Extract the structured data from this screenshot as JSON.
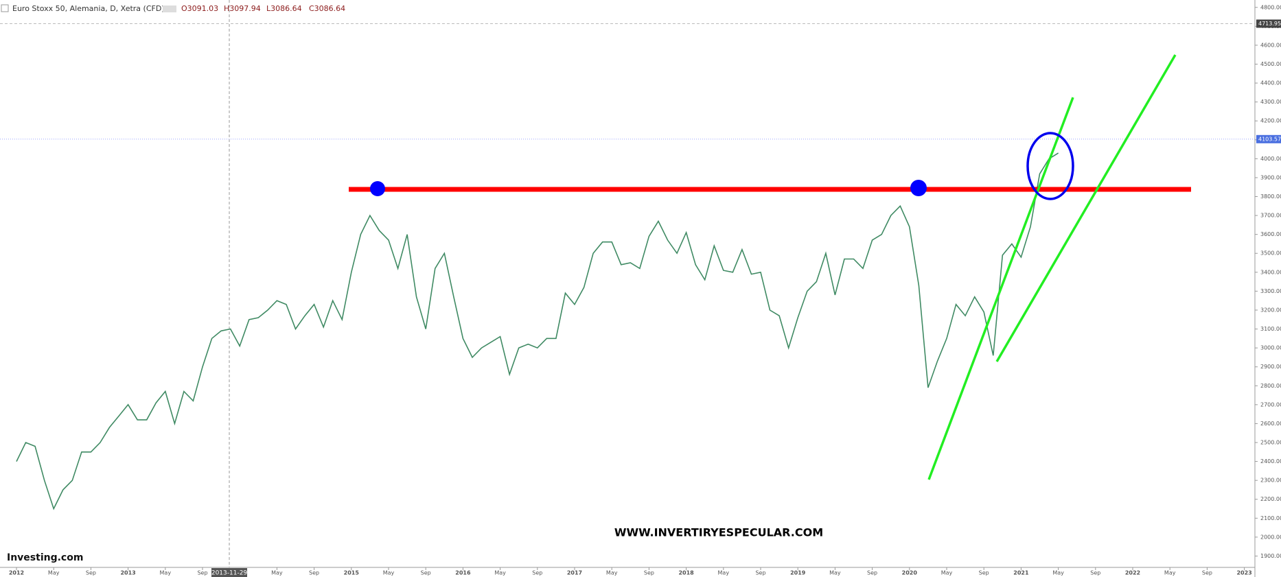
{
  "header": {
    "title": "Euro Stoxx 50, Alemania, D, Xetra (CFD) -",
    "open": "O3091.03",
    "high": "H3097.94",
    "low": "L3086.64",
    "close": "C3086.64"
  },
  "watermark": "WWW.INVERTIRYESPECULAR.COM",
  "logo": "Investing.com",
  "crosshair_date": "2013-11-29",
  "chart_data": {
    "type": "line",
    "categories": [
      "2012",
      null,
      null,
      null,
      "May",
      null,
      null,
      null,
      "Sep",
      null,
      null,
      null,
      "2013",
      null,
      null,
      null,
      "May",
      null,
      null,
      null,
      "Sep",
      null,
      null,
      null,
      null,
      null,
      null,
      null,
      "May",
      null,
      null,
      null,
      "Sep",
      null,
      null,
      null,
      "2015",
      null,
      null,
      null,
      "May",
      null,
      null,
      null,
      "Sep",
      null,
      null,
      null,
      "2016",
      null,
      null,
      null,
      "May",
      null,
      null,
      null,
      "Sep",
      null,
      null,
      null,
      "2017",
      null,
      null,
      null,
      "May",
      null,
      null,
      null,
      "Sep",
      null,
      null,
      null,
      "2018",
      null,
      null,
      null,
      "May",
      null,
      null,
      null,
      "Sep",
      null,
      null,
      null,
      "2019",
      null,
      null,
      null,
      "May",
      null,
      null,
      null,
      "Sep",
      null,
      null,
      null,
      "2020",
      null,
      null,
      null,
      "May",
      null,
      null,
      null,
      "Sep",
      null,
      null,
      null,
      "2021",
      null,
      null,
      null,
      "May",
      null,
      null,
      null,
      "Sep",
      null,
      null,
      null,
      "2022",
      null,
      null,
      null,
      "May",
      null,
      null,
      null,
      "Sep",
      null,
      null,
      null,
      "2023"
    ],
    "series": [
      {
        "name": "Euro Stoxx 50",
        "color": "#3f8a63",
        "values": [
          2400,
          2500,
          2480,
          2300,
          2150,
          2250,
          2300,
          2450,
          2450,
          2500,
          2580,
          2640,
          2700,
          2620,
          2620,
          2710,
          2770,
          2600,
          2770,
          2720,
          2900,
          3050,
          3090,
          3100,
          3010,
          3150,
          3160,
          3200,
          3250,
          3230,
          3100,
          3170,
          3230,
          3110,
          3250,
          3150,
          3400,
          3600,
          3700,
          3620,
          3570,
          3420,
          3600,
          3270,
          3100,
          3420,
          3500,
          3270,
          3050,
          2950,
          3000,
          3030,
          3060,
          2860,
          3000,
          3020,
          3000,
          3050,
          3050,
          3290,
          3230,
          3320,
          3500,
          3560,
          3560,
          3440,
          3450,
          3420,
          3590,
          3670,
          3570,
          3500,
          3610,
          3440,
          3360,
          3540,
          3410,
          3400,
          3520,
          3390,
          3400,
          3200,
          3170,
          3000,
          3160,
          3300,
          3350,
          3500,
          3280,
          3470,
          3470,
          3420,
          3570,
          3600,
          3700,
          3750,
          3640,
          3330,
          2790,
          2930,
          3050,
          3230,
          3170,
          3270,
          3190,
          2960,
          3490,
          3550,
          3480,
          3640,
          3920,
          4000,
          4030,
          null,
          null,
          null,
          null,
          null,
          null,
          null,
          null,
          null,
          null,
          null,
          null,
          null,
          null,
          null,
          null,
          null,
          null,
          null,
          null
        ]
      }
    ],
    "ylim": [
      1840,
      4839
    ],
    "yticks": [
      {
        "value": 1900,
        "label": "1900.00"
      },
      {
        "value": 2000,
        "label": "2000.00"
      },
      {
        "value": 2100,
        "label": "2100.00"
      },
      {
        "value": 2200,
        "label": "2200.00"
      },
      {
        "value": 2300,
        "label": "2300.00"
      },
      {
        "value": 2400,
        "label": "2400.00"
      },
      {
        "value": 2500,
        "label": "2500.00"
      },
      {
        "value": 2600,
        "label": "2600.00"
      },
      {
        "value": 2700,
        "label": "2700.00"
      },
      {
        "value": 2800,
        "label": "2800.00"
      },
      {
        "value": 2900,
        "label": "2900.00"
      },
      {
        "value": 3000,
        "label": "3000.00"
      },
      {
        "value": 3100,
        "label": "3100.00"
      },
      {
        "value": 3200,
        "label": "3200.00"
      },
      {
        "value": 3300,
        "label": "3300.00"
      },
      {
        "value": 3400,
        "label": "3400.00"
      },
      {
        "value": 3500,
        "label": "3500.00"
      },
      {
        "value": 3600,
        "label": "3600.00"
      },
      {
        "value": 3700,
        "label": "3700.00"
      },
      {
        "value": 3800,
        "label": "3800.00"
      },
      {
        "value": 3900,
        "label": "3900.00"
      },
      {
        "value": 4000,
        "label": "4000.00"
      },
      {
        "value": 4100,
        "label": "4100.00"
      },
      {
        "value": 4200,
        "label": "4200.00"
      },
      {
        "value": 4300,
        "label": "4300.00"
      },
      {
        "value": 4400,
        "label": "4400.00"
      },
      {
        "value": 4500,
        "label": "4500.00"
      },
      {
        "value": 4600,
        "label": "4600.00"
      },
      {
        "value": 4700,
        "label": "4700.00"
      },
      {
        "value": 4800,
        "label": "4800.00"
      }
    ],
    "price_labels": [
      4713.95,
      4103.57
    ]
  }
}
